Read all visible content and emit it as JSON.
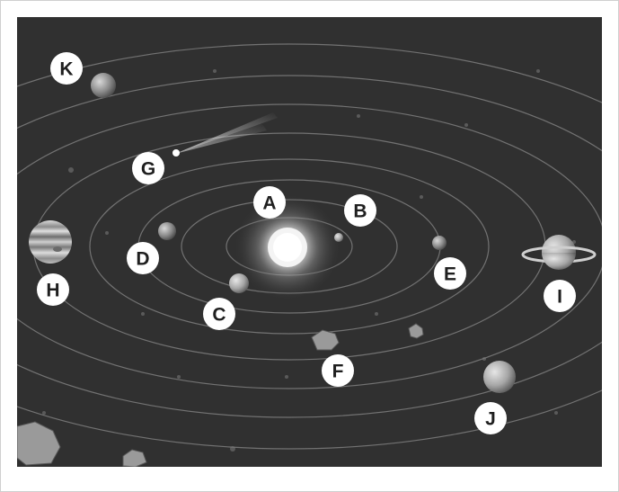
{
  "labels": {
    "a": "A",
    "b": "B",
    "c": "C",
    "d": "D",
    "e": "E",
    "f": "F",
    "g": "G",
    "h": "H",
    "i": "I",
    "j": "J",
    "k": "K"
  },
  "colors": {
    "space": "#303030",
    "orbit": "#7a7a7a",
    "label_circle": "#ffffff",
    "label_text": "#1f1f1f"
  }
}
